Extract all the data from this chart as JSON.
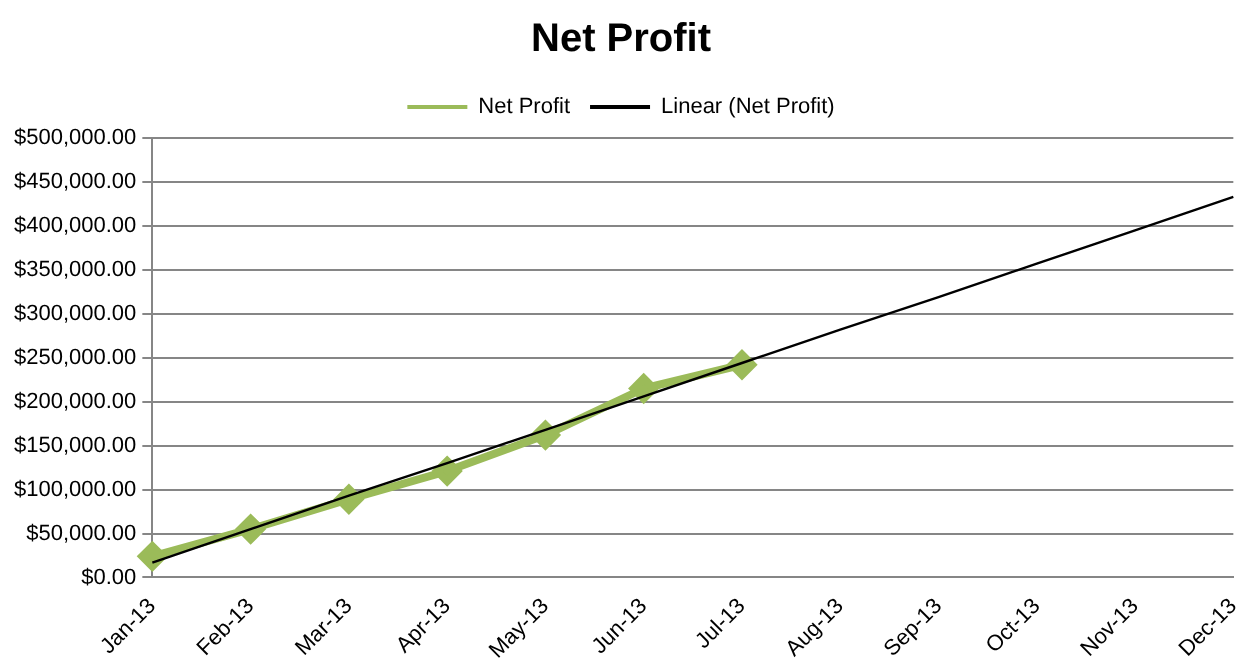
{
  "chart_data": {
    "type": "line",
    "title": "Net Profit",
    "categories": [
      "Jan-13",
      "Feb-13",
      "Mar-13",
      "Apr-13",
      "May-13",
      "Jun-13",
      "Jul-13",
      "Aug-13",
      "Sep-13",
      "Oct-13",
      "Nov-13",
      "Dec-13"
    ],
    "series": [
      {
        "name": "Net Profit",
        "color": "#9bbb59",
        "marker": "diamond",
        "values": [
          24000,
          55000,
          89000,
          121000,
          162000,
          215000,
          242000,
          null,
          null,
          null,
          null,
          null
        ]
      },
      {
        "name": "Linear (Net Profit)",
        "type": "line",
        "color": "#000000",
        "marker": "none",
        "values": [
          17000,
          55000,
          93000,
          130000,
          168000,
          206000,
          244000,
          282000,
          319000,
          357000,
          395000,
          433000
        ]
      }
    ],
    "ylim": [
      0,
      500000
    ],
    "yticks": [
      {
        "value": 0,
        "label": "$0.00"
      },
      {
        "value": 50000,
        "label": "$50,000.00"
      },
      {
        "value": 100000,
        "label": "$100,000.00"
      },
      {
        "value": 150000,
        "label": "$150,000.00"
      },
      {
        "value": 200000,
        "label": "$200,000.00"
      },
      {
        "value": 250000,
        "label": "$250,000.00"
      },
      {
        "value": 300000,
        "label": "$300,000.00"
      },
      {
        "value": 350000,
        "label": "$350,000.00"
      },
      {
        "value": 400000,
        "label": "$400,000.00"
      },
      {
        "value": 450000,
        "label": "$450,000.00"
      },
      {
        "value": 500000,
        "label": "$500,000.00"
      }
    ],
    "grid": "y",
    "legend": "top"
  }
}
